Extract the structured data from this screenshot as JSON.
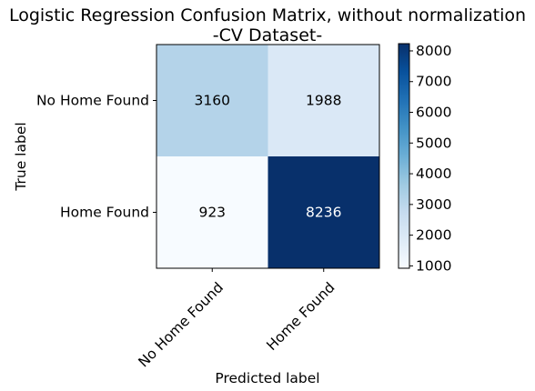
{
  "chart_data": {
    "type": "heatmap",
    "title": "Logistic Regression Confusion Matrix, without normalization",
    "subtitle": "-CV Dataset-",
    "xlabel": "Predicted label",
    "ylabel": "True label",
    "x_categories": [
      "No Home Found",
      "Home Found"
    ],
    "y_categories": [
      "No Home Found",
      "Home Found"
    ],
    "values": [
      [
        3160,
        1988
      ],
      [
        923,
        8236
      ]
    ],
    "value_labels": [
      [
        "3160",
        "1988"
      ],
      [
        "923",
        "8236"
      ]
    ],
    "colormap": "Blues",
    "colorbar": {
      "range": [
        923,
        8236
      ],
      "ticks": [
        1000,
        2000,
        3000,
        4000,
        5000,
        6000,
        7000,
        8000
      ],
      "tick_labels": [
        "1000",
        "2000",
        "3000",
        "4000",
        "5000",
        "6000",
        "7000",
        "8000"
      ]
    },
    "grid": false
  }
}
